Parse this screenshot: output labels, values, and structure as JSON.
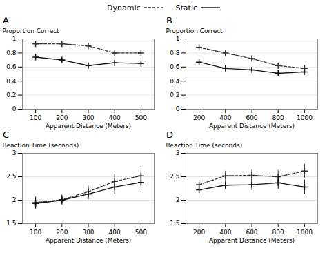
{
  "chart_data": [
    {
      "type": "line",
      "title": "A",
      "xlabel": "Apparent Distance (Meters)",
      "ylabel": "Proportion Correct",
      "x": [
        100,
        200,
        300,
        400,
        500
      ],
      "xlim": [
        50,
        550
      ],
      "xticks": [
        100,
        200,
        300,
        400,
        500
      ],
      "ylim": [
        0,
        1.0
      ],
      "yticks": [
        0,
        0.2,
        0.4,
        0.6,
        0.8,
        1
      ],
      "grid": true,
      "legend": "top",
      "series": [
        {
          "name": "Dynamic",
          "color": "#333333",
          "line_style": "dashed",
          "marker": "plus",
          "values": [
            0.93,
            0.93,
            0.9,
            0.8,
            0.8
          ],
          "errors": [
            0.015,
            0.015,
            0.015,
            0.015,
            0.015
          ]
        },
        {
          "name": "Static",
          "color": "#111111",
          "line_style": "solid",
          "marker": "plus",
          "values": [
            0.74,
            0.7,
            0.62,
            0.66,
            0.65
          ],
          "errors": [
            0.025,
            0.02,
            0.025,
            0.02,
            0.02
          ]
        }
      ]
    },
    {
      "type": "line",
      "title": "B",
      "xlabel": "Apparent Distance (Meters)",
      "ylabel": "Proportion Correct",
      "x": [
        200,
        400,
        600,
        800,
        1000
      ],
      "xlim": [
        100,
        1100
      ],
      "xticks": [
        200,
        400,
        600,
        800,
        1000
      ],
      "ylim": [
        0,
        1.0
      ],
      "yticks": [
        0,
        0.2,
        0.4,
        0.6,
        0.8,
        1
      ],
      "grid": true,
      "legend": "top",
      "series": [
        {
          "name": "Dynamic",
          "color": "#333333",
          "line_style": "dashed",
          "marker": "plus",
          "values": [
            0.88,
            0.8,
            0.72,
            0.62,
            0.58
          ],
          "errors": [
            0.02,
            0.02,
            0.025,
            0.025,
            0.02
          ]
        },
        {
          "name": "Static",
          "color": "#111111",
          "line_style": "solid",
          "marker": "plus",
          "values": [
            0.67,
            0.58,
            0.56,
            0.51,
            0.53
          ],
          "errors": [
            0.02,
            0.02,
            0.02,
            0.02,
            0.02
          ]
        }
      ]
    },
    {
      "type": "line",
      "title": "C",
      "xlabel": "Apparent Distance (Meters)",
      "ylabel": "Reaction Time (seconds)",
      "x": [
        100,
        200,
        300,
        400,
        500
      ],
      "xlim": [
        50,
        550
      ],
      "xticks": [
        100,
        200,
        300,
        400,
        500
      ],
      "ylim": [
        1.5,
        3.0
      ],
      "yticks": [
        1.5,
        2,
        2.5,
        3
      ],
      "grid": true,
      "legend": "top",
      "series": [
        {
          "name": "Dynamic",
          "color": "#333333",
          "line_style": "dashed",
          "marker": "plus",
          "values": [
            1.95,
            2.01,
            2.18,
            2.4,
            2.52
          ],
          "errors": [
            0.12,
            0.1,
            0.12,
            0.15,
            0.2
          ]
        },
        {
          "name": "Static",
          "color": "#111111",
          "line_style": "solid",
          "marker": "plus",
          "values": [
            1.93,
            2.0,
            2.13,
            2.28,
            2.38
          ],
          "errors": [
            0.12,
            0.1,
            0.12,
            0.15,
            0.22
          ]
        }
      ]
    },
    {
      "type": "line",
      "title": "D",
      "xlabel": "Apparent Distance (Meters)",
      "ylabel": "Reaction Time (seconds)",
      "x": [
        200,
        400,
        600,
        800,
        1000
      ],
      "xlim": [
        100,
        1100
      ],
      "xticks": [
        200,
        400,
        600,
        800,
        1000
      ],
      "ylim": [
        1.5,
        3.0
      ],
      "yticks": [
        1.5,
        2,
        2.5,
        3
      ],
      "grid": true,
      "legend": "top",
      "series": [
        {
          "name": "Dynamic",
          "color": "#333333",
          "line_style": "dashed",
          "marker": "plus",
          "values": [
            2.33,
            2.52,
            2.53,
            2.5,
            2.62
          ],
          "errors": [
            0.1,
            0.1,
            0.12,
            0.13,
            0.15
          ]
        },
        {
          "name": "Static",
          "color": "#111111",
          "line_style": "solid",
          "marker": "plus",
          "values": [
            2.22,
            2.32,
            2.33,
            2.37,
            2.28
          ],
          "errors": [
            0.1,
            0.1,
            0.12,
            0.14,
            0.15
          ]
        }
      ]
    }
  ]
}
